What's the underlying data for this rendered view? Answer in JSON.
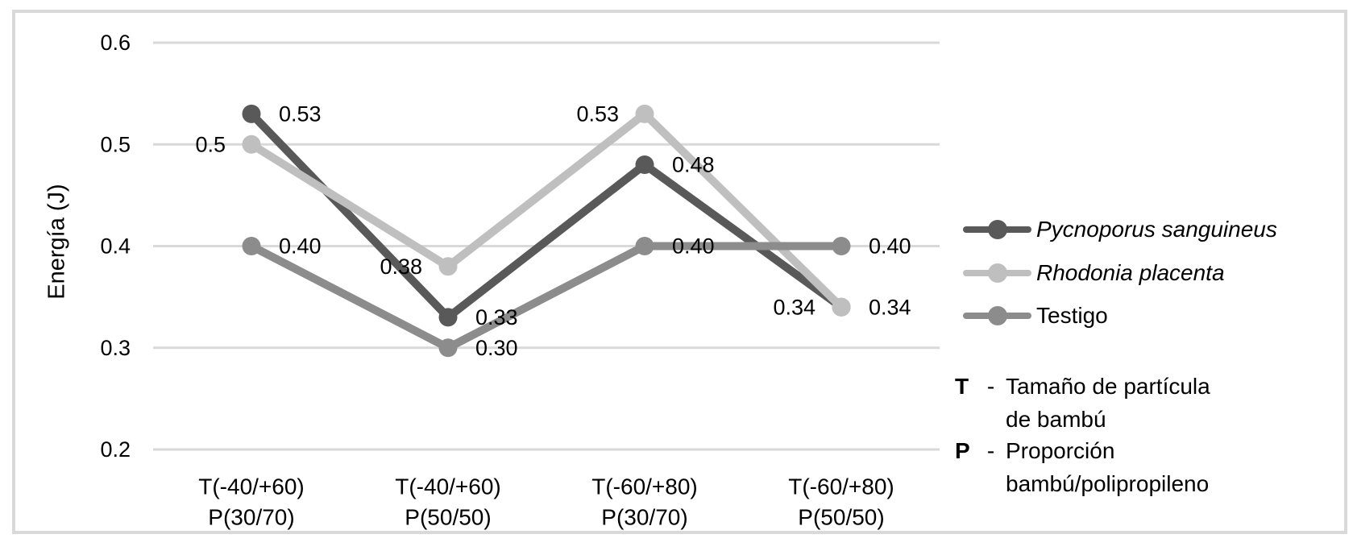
{
  "chart_data": {
    "type": "line",
    "title": "",
    "ylabel": "Energía (J)",
    "xlabel": "",
    "ylim": [
      0.2,
      0.6
    ],
    "grid": true,
    "gridline_color": "#d9d9d9",
    "frame_color": "#d9d9d9",
    "text_color": "#000000",
    "y_ticks": [
      0.6,
      0.5,
      0.4,
      0.3,
      0.2
    ],
    "y_tick_labels": [
      "0.6",
      "0.5",
      "0.4",
      "0.3",
      "0.2"
    ],
    "categories": [
      [
        "T(-40/+60)",
        "P(30/70)"
      ],
      [
        "T(-40/+60)",
        "P(50/50)"
      ],
      [
        "T(-60/+80)",
        "P(30/70)"
      ],
      [
        "T(-60/+80)",
        "P(50/50)"
      ]
    ],
    "legend_position": "right",
    "series": [
      {
        "name": "Pycnoporus sanguineus",
        "italic": true,
        "color": "#595959",
        "values": [
          0.53,
          0.33,
          0.48,
          0.34
        ],
        "labels": [
          "0.53",
          "0.33",
          "0.48",
          "0.34"
        ],
        "label_side": [
          "right",
          "right",
          "right",
          "left"
        ]
      },
      {
        "name": "Rhodonia placenta",
        "italic": true,
        "color": "#bfbfbf",
        "values": [
          0.5,
          0.38,
          0.53,
          0.34
        ],
        "labels": [
          "0.5",
          "0.38",
          "0.53",
          "0.34"
        ],
        "label_side": [
          "left",
          "left",
          "left",
          "right"
        ]
      },
      {
        "name": "Testigo",
        "italic": false,
        "color": "#8c8c8c",
        "values": [
          0.4,
          0.3,
          0.4,
          0.4
        ],
        "labels": [
          "0.40",
          "0.30",
          "0.40",
          "0.40"
        ],
        "label_side": [
          "right",
          "right",
          "right",
          "right"
        ]
      }
    ]
  },
  "annotations": [
    {
      "key": "T",
      "sep": "-",
      "text_lines": [
        "Tamaño de partícula",
        "de bambú"
      ]
    },
    {
      "key": "P",
      "sep": "-",
      "text_lines": [
        "Proporción",
        "bambú/polipropileno"
      ]
    }
  ]
}
